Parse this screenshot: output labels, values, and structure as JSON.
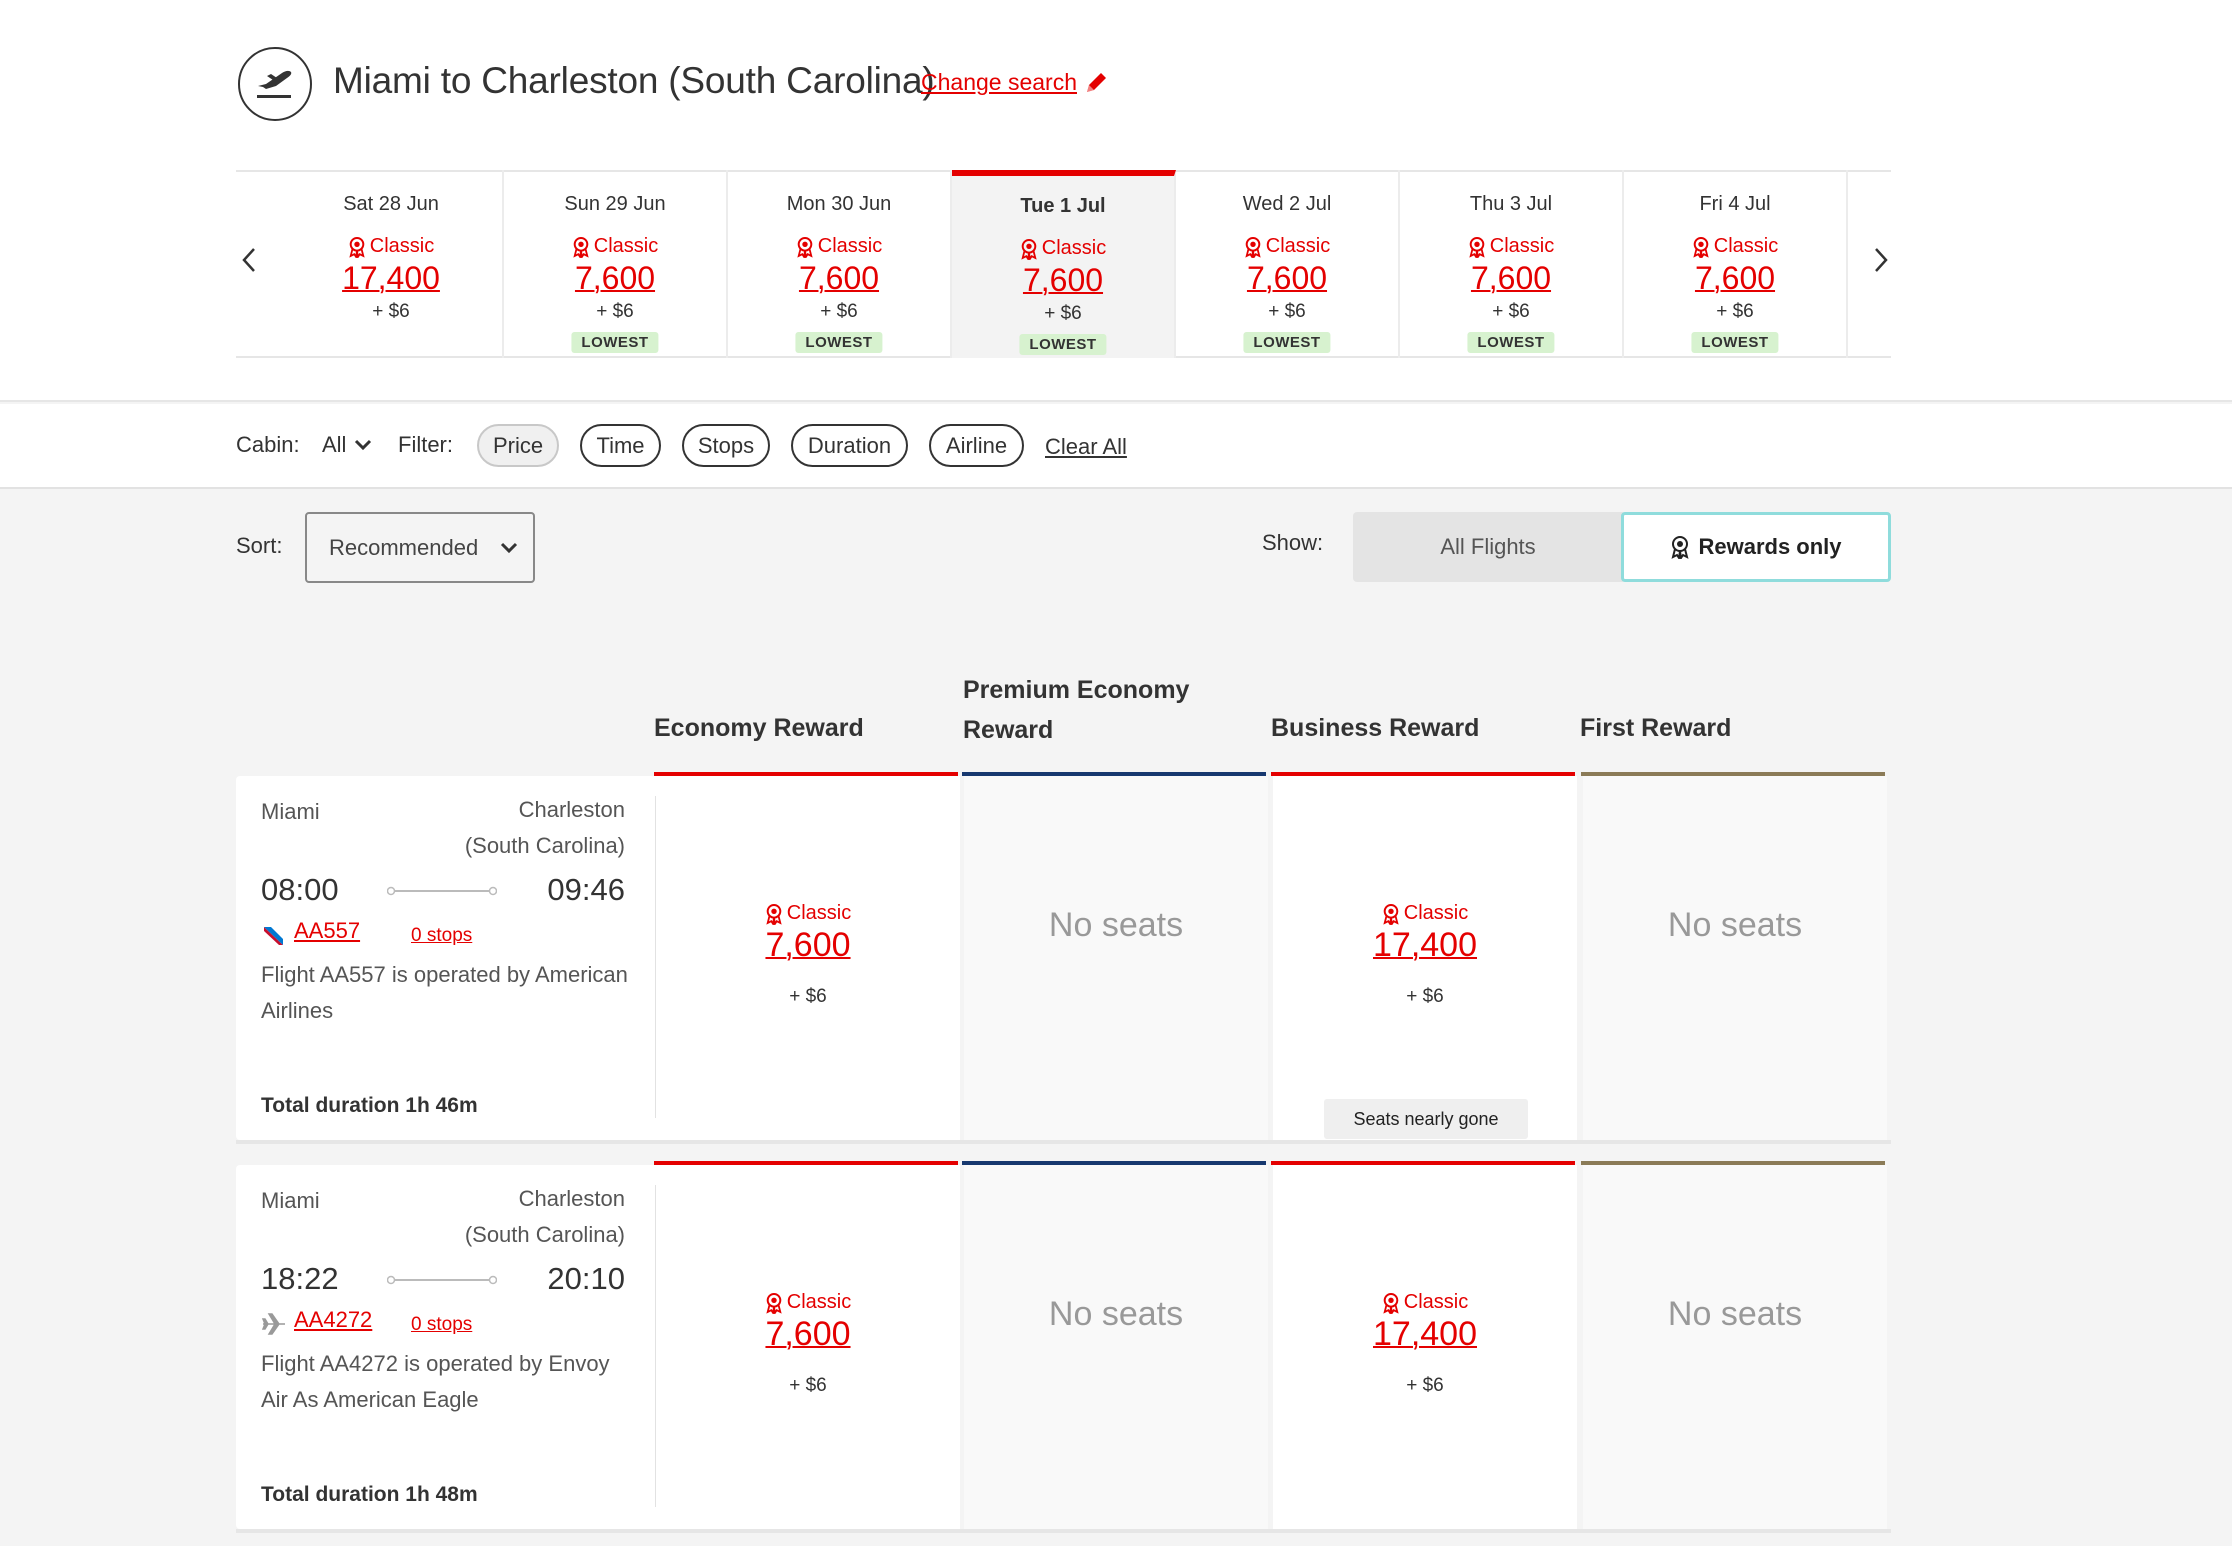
{
  "header": {
    "route_title": "Miami to Charleston (South Carolina)",
    "change_search": "Change search"
  },
  "dates": [
    {
      "label": "Sat 28 Jun",
      "fare_type": "Classic",
      "points": "17,400",
      "tax": "+ $6",
      "badge": ""
    },
    {
      "label": "Sun 29 Jun",
      "fare_type": "Classic",
      "points": "7,600",
      "tax": "+ $6",
      "badge": "LOWEST"
    },
    {
      "label": "Mon 30 Jun",
      "fare_type": "Classic",
      "points": "7,600",
      "tax": "+ $6",
      "badge": "LOWEST"
    },
    {
      "label": "Tue 1 Jul",
      "fare_type": "Classic",
      "points": "7,600",
      "tax": "+ $6",
      "badge": "LOWEST",
      "selected": true
    },
    {
      "label": "Wed 2 Jul",
      "fare_type": "Classic",
      "points": "7,600",
      "tax": "+ $6",
      "badge": "LOWEST"
    },
    {
      "label": "Thu 3 Jul",
      "fare_type": "Classic",
      "points": "7,600",
      "tax": "+ $6",
      "badge": "LOWEST"
    },
    {
      "label": "Fri 4 Jul",
      "fare_type": "Classic",
      "points": "7,600",
      "tax": "+ $6",
      "badge": "LOWEST"
    }
  ],
  "filters": {
    "cabin_label": "Cabin:",
    "cabin_value": "All",
    "filter_label": "Filter:",
    "pills": [
      "Price",
      "Time",
      "Stops",
      "Duration",
      "Airline"
    ],
    "active_pill": "Price",
    "clear_all": "Clear All"
  },
  "sort": {
    "label": "Sort:",
    "value": "Recommended"
  },
  "show": {
    "label": "Show:",
    "all_flights": "All Flights",
    "rewards_only": "Rewards only",
    "selected": "Rewards only"
  },
  "columns": [
    {
      "label": "Economy Reward",
      "color": "#e40000"
    },
    {
      "label": "Premium Economy Reward",
      "color": "#17386f"
    },
    {
      "label": "Business Reward",
      "color": "#e40000"
    },
    {
      "label": "First Reward",
      "color": "#8b7b57"
    }
  ],
  "flights": [
    {
      "origin": "Miami",
      "destination": "Charleston (South Carolina)",
      "depart": "08:00",
      "arrive": "09:46",
      "flight_no": "AA557",
      "stops": "0 stops",
      "operated_by": "Flight AA557 is operated by American Airlines",
      "duration": "Total duration 1h 46m",
      "airline_icon": "american-airlines-logo-icon",
      "fares": [
        {
          "type": "Classic",
          "points": "7,600",
          "tax": "+ $6"
        },
        {
          "no_seats": "No seats"
        },
        {
          "type": "Classic",
          "points": "17,400",
          "tax": "+ $6",
          "note": "Seats nearly gone"
        },
        {
          "no_seats": "No seats"
        }
      ]
    },
    {
      "origin": "Miami",
      "destination": "Charleston (South Carolina)",
      "depart": "18:22",
      "arrive": "20:10",
      "flight_no": "AA4272",
      "stops": "0 stops",
      "operated_by": "Flight AA4272 is operated by Envoy Air As American Eagle",
      "duration": "Total duration 1h 48m",
      "airline_icon": "plane-icon",
      "fares": [
        {
          "type": "Classic",
          "points": "7,600",
          "tax": "+ $6"
        },
        {
          "no_seats": "No seats"
        },
        {
          "type": "Classic",
          "points": "17,400",
          "tax": "+ $6"
        },
        {
          "no_seats": "No seats"
        }
      ]
    }
  ]
}
